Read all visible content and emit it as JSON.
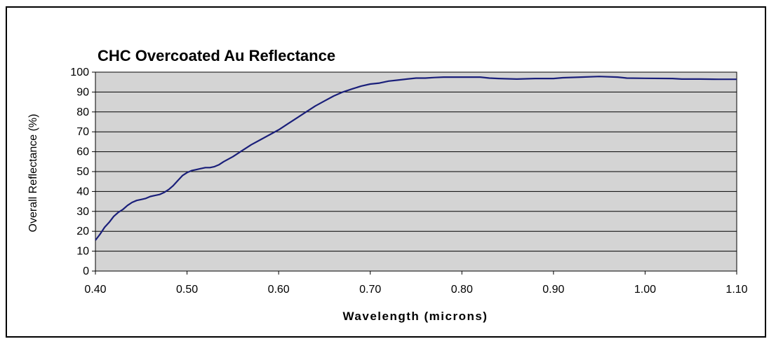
{
  "chart_data": {
    "type": "line",
    "title": "CHC Overcoated Au Reflectance",
    "xlabel": "Wavelength (microns)",
    "ylabel": "Overall Reflectance (%)",
    "xlim": [
      0.4,
      1.1
    ],
    "ylim": [
      0,
      100
    ],
    "x_ticks": [
      "0.40",
      "0.50",
      "0.60",
      "0.70",
      "0.80",
      "0.90",
      "1.00",
      "1.10"
    ],
    "y_ticks": [
      "0",
      "10",
      "20",
      "30",
      "40",
      "50",
      "60",
      "70",
      "80",
      "90",
      "100"
    ],
    "grid": true,
    "legend": "none",
    "plot_background": "#d4d4d4",
    "line_color": "#1a1f7a",
    "series": [
      {
        "x": [
          0.4,
          0.405,
          0.41,
          0.415,
          0.42,
          0.425,
          0.43,
          0.435,
          0.44,
          0.445,
          0.45,
          0.455,
          0.46,
          0.465,
          0.47,
          0.475,
          0.48,
          0.485,
          0.49,
          0.495,
          0.5,
          0.505,
          0.51,
          0.515,
          0.52,
          0.525,
          0.53,
          0.535,
          0.54,
          0.55,
          0.56,
          0.57,
          0.58,
          0.59,
          0.6,
          0.61,
          0.62,
          0.63,
          0.64,
          0.65,
          0.66,
          0.67,
          0.68,
          0.69,
          0.7,
          0.71,
          0.72,
          0.73,
          0.74,
          0.75,
          0.76,
          0.77,
          0.78,
          0.8,
          0.82,
          0.83,
          0.84,
          0.86,
          0.88,
          0.9,
          0.91,
          0.93,
          0.95,
          0.97,
          0.98,
          1.0,
          1.03,
          1.04,
          1.06,
          1.08,
          1.1
        ],
        "y": [
          15.5,
          18.5,
          22.0,
          24.5,
          27.5,
          29.5,
          31.0,
          33.0,
          34.5,
          35.5,
          36.0,
          36.5,
          37.5,
          38.0,
          38.5,
          39.5,
          41.0,
          43.0,
          45.5,
          48.0,
          49.5,
          50.5,
          51.0,
          51.5,
          52.0,
          52.0,
          52.5,
          53.5,
          55.0,
          57.5,
          60.5,
          63.5,
          66.0,
          68.5,
          71.0,
          74.0,
          77.0,
          80.0,
          83.0,
          85.5,
          88.0,
          90.0,
          91.5,
          93.0,
          94.0,
          94.5,
          95.5,
          96.0,
          96.5,
          97.0,
          97.0,
          97.3,
          97.5,
          97.5,
          97.5,
          97.0,
          96.8,
          96.5,
          96.8,
          96.8,
          97.2,
          97.5,
          97.8,
          97.5,
          97.0,
          96.9,
          96.8,
          96.5,
          96.5,
          96.4,
          96.4
        ]
      }
    ]
  }
}
